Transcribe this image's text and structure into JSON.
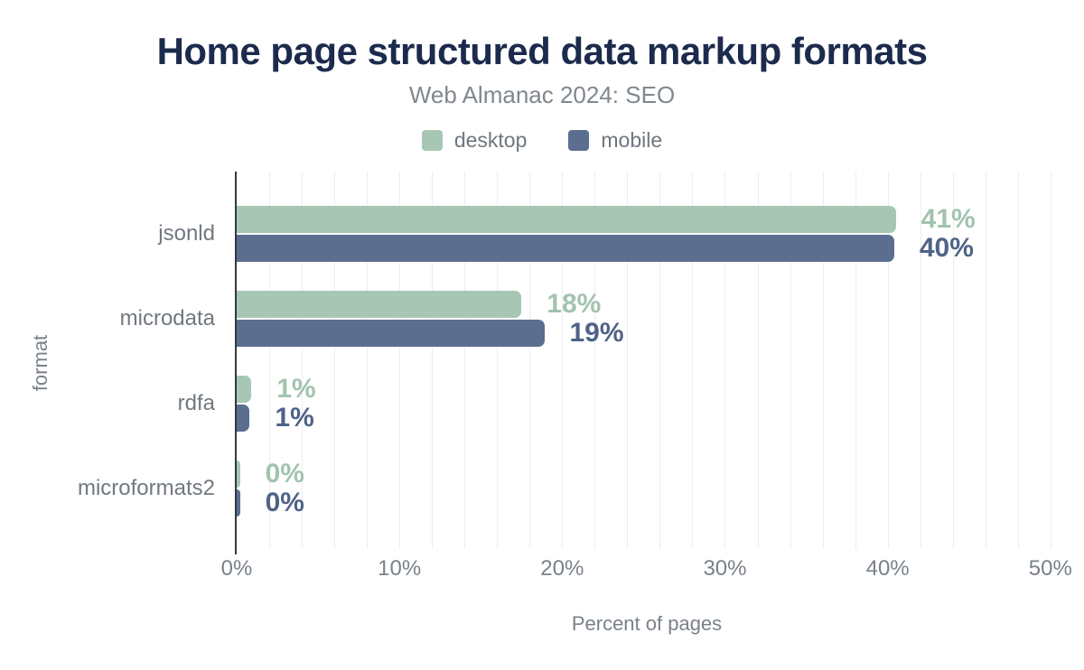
{
  "chart_data": {
    "type": "bar",
    "orientation": "horizontal",
    "title": "Home page structured data markup formats",
    "subtitle": "Web Almanac 2024: SEO",
    "xlabel": "Percent of pages",
    "ylabel": "format",
    "categories": [
      "jsonld",
      "microdata",
      "rdfa",
      "microformats2"
    ],
    "series": [
      {
        "name": "desktop",
        "color": "#a7c7b4",
        "value_label_color": "#a2c3af",
        "values": [
          40.5,
          17.5,
          0.9,
          0.2
        ],
        "value_labels": [
          "41%",
          "18%",
          "1%",
          "0%"
        ]
      },
      {
        "name": "mobile",
        "color": "#5b6e90",
        "value_label_color": "#4f6387",
        "values": [
          40.4,
          18.9,
          0.8,
          0.2
        ],
        "value_labels": [
          "40%",
          "19%",
          "1%",
          "0%"
        ]
      }
    ],
    "x_ticks": [
      {
        "label": "0%",
        "value": 0
      },
      {
        "label": "10%",
        "value": 10
      },
      {
        "label": "20%",
        "value": 20
      },
      {
        "label": "30%",
        "value": 30
      },
      {
        "label": "40%",
        "value": 40
      },
      {
        "label": "50%",
        "value": 50
      }
    ],
    "x_range": [
      0,
      50.4
    ],
    "grid_step": 2,
    "grid": true,
    "legend_position": "top",
    "colors": {
      "title_text": "#1c2b4d",
      "subtitle_text": "#80878e",
      "axis_text": "#7a818a",
      "category_text": "#71787f",
      "gridline": "#ededf1",
      "axis_line": "#33383e",
      "background": "#ffffff"
    }
  }
}
